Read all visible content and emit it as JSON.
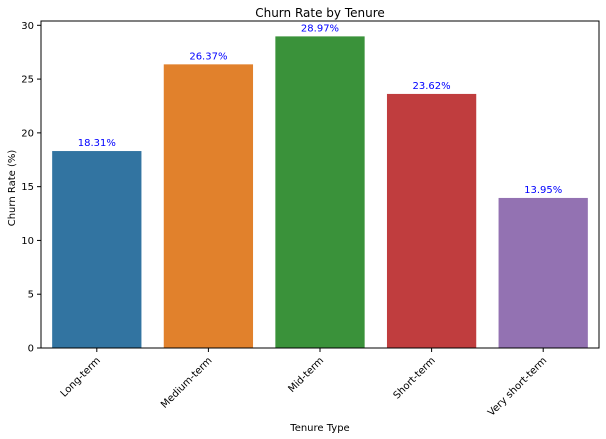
{
  "chart_data": {
    "type": "bar",
    "title": "Churn Rate by Tenure",
    "xlabel": "Tenure Type",
    "ylabel": "Churn Rate (%)",
    "categories": [
      "Long-term",
      "Medium-term",
      "Mid-term",
      "Short-term",
      "Very short-term"
    ],
    "values": [
      18.31,
      26.37,
      28.97,
      23.62,
      13.95
    ],
    "data_labels": [
      "18.31%",
      "26.37%",
      "28.97%",
      "23.62%",
      "13.95%"
    ],
    "ylim": [
      0,
      30.4
    ],
    "yticks": [
      0,
      5,
      10,
      15,
      20,
      25,
      30
    ],
    "colors": [
      "#3274a1",
      "#e1812c",
      "#3a923a",
      "#c03d3e",
      "#9372b2"
    ],
    "label_color": "#0000ff",
    "grid": false,
    "legend": "none"
  }
}
